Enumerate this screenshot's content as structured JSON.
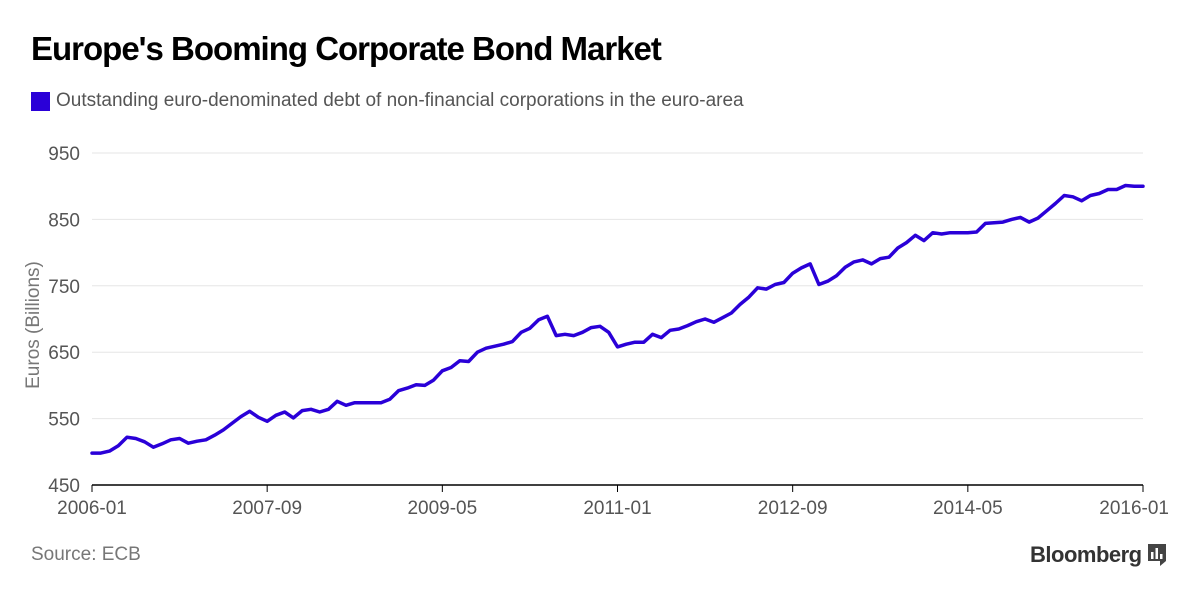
{
  "header": {
    "title": "Europe's Booming Corporate Bond Market"
  },
  "footer": {
    "source": "Source: ECB",
    "brand": "Bloomberg"
  },
  "colors": {
    "series": "#2a00d8",
    "grid": "#e6e6e6",
    "axis": "#000000"
  },
  "chart_data": {
    "type": "line",
    "title": "Europe's Booming Corporate Bond Market",
    "ylabel": "Euros (Billions)",
    "xlabel": "",
    "ylim": [
      450,
      950
    ],
    "yticks": [
      950,
      850,
      750,
      650,
      550,
      450
    ],
    "xlim": [
      "2006-01",
      "2016-01"
    ],
    "xticks": [
      "2006-01",
      "2007-09",
      "2009-05",
      "2011-01",
      "2012-09",
      "2014-05",
      "2016-01"
    ],
    "grid": true,
    "legend": "top-left",
    "series": [
      {
        "name": "Outstanding euro-denominated debt of non-financial corporations in the euro-area",
        "x": [
          "2006-01",
          "2006-02",
          "2006-03",
          "2006-04",
          "2006-05",
          "2006-06",
          "2006-07",
          "2006-08",
          "2006-09",
          "2006-10",
          "2006-11",
          "2006-12",
          "2007-01",
          "2007-02",
          "2007-03",
          "2007-04",
          "2007-05",
          "2007-06",
          "2007-07",
          "2007-08",
          "2007-09",
          "2007-10",
          "2007-11",
          "2007-12",
          "2008-01",
          "2008-02",
          "2008-03",
          "2008-04",
          "2008-05",
          "2008-06",
          "2008-07",
          "2008-08",
          "2008-09",
          "2008-10",
          "2008-11",
          "2008-12",
          "2009-01",
          "2009-02",
          "2009-03",
          "2009-04",
          "2009-05",
          "2009-06",
          "2009-07",
          "2009-08",
          "2009-09",
          "2009-10",
          "2009-11",
          "2009-12",
          "2010-01",
          "2010-02",
          "2010-03",
          "2010-04",
          "2010-05",
          "2010-06",
          "2010-07",
          "2010-08",
          "2010-09",
          "2010-10",
          "2010-11",
          "2010-12",
          "2011-01",
          "2011-02",
          "2011-03",
          "2011-04",
          "2011-05",
          "2011-06",
          "2011-07",
          "2011-08",
          "2011-09",
          "2011-10",
          "2011-11",
          "2011-12",
          "2012-01",
          "2012-02",
          "2012-03",
          "2012-04",
          "2012-05",
          "2012-06",
          "2012-07",
          "2012-08",
          "2012-09",
          "2012-10",
          "2012-11",
          "2012-12",
          "2013-01",
          "2013-02",
          "2013-03",
          "2013-04",
          "2013-05",
          "2013-06",
          "2013-07",
          "2013-08",
          "2013-09",
          "2013-10",
          "2013-11",
          "2013-12",
          "2014-01",
          "2014-02",
          "2014-03",
          "2014-04",
          "2014-05",
          "2014-06",
          "2014-07",
          "2014-08",
          "2014-09",
          "2014-10",
          "2014-11",
          "2014-12",
          "2015-01",
          "2015-02",
          "2015-03",
          "2015-04",
          "2015-05",
          "2015-06",
          "2015-07",
          "2015-08",
          "2015-09",
          "2015-10",
          "2015-11",
          "2015-12",
          "2016-01"
        ],
        "values": [
          498,
          498,
          501,
          509,
          522,
          520,
          515,
          507,
          512,
          518,
          520,
          513,
          516,
          518,
          525,
          533,
          543,
          553,
          561,
          552,
          546,
          555,
          560,
          551,
          562,
          564,
          560,
          564,
          576,
          570,
          574,
          574,
          574,
          574,
          579,
          592,
          596,
          601,
          600,
          608,
          622,
          627,
          637,
          636,
          650,
          656,
          659,
          662,
          666,
          680,
          686,
          699,
          704,
          675,
          677,
          675,
          680,
          687,
          689,
          680,
          658,
          662,
          665,
          665,
          677,
          672,
          683,
          685,
          690,
          696,
          700,
          695,
          702,
          709,
          722,
          733,
          747,
          745,
          752,
          755,
          769,
          777,
          783,
          752,
          757,
          765,
          778,
          786,
          789,
          783,
          791,
          793,
          807,
          815,
          826,
          818,
          830,
          828,
          830,
          830,
          830,
          831,
          844,
          845,
          846,
          850,
          853,
          846,
          852,
          863,
          874,
          886,
          884,
          878,
          886,
          889,
          895,
          895,
          901,
          900,
          900
        ]
      }
    ]
  }
}
